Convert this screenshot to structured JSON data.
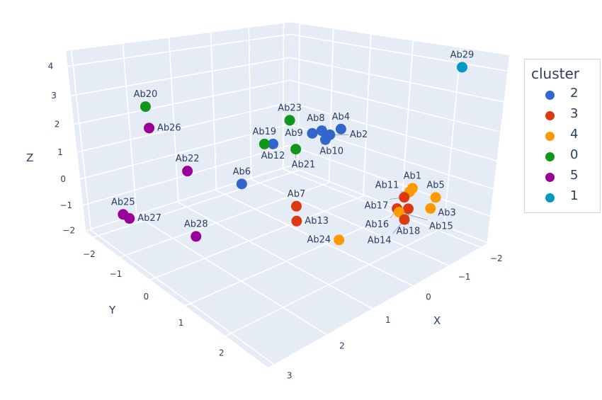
{
  "chart_data": {
    "type": "scatter3d",
    "title": "",
    "xlabel": "X",
    "ylabel": "Y",
    "zlabel": "Z",
    "xlim": [
      -2.2,
      3.1
    ],
    "ylim": [
      -2.3,
      2.9
    ],
    "zlim": [
      -2.05,
      4.5
    ],
    "x_ticks": [
      {
        "v": -2,
        "t": "−2"
      },
      {
        "v": -1,
        "t": "−1"
      },
      {
        "v": 0,
        "t": "0"
      },
      {
        "v": 1,
        "t": "1"
      },
      {
        "v": 2,
        "t": "2"
      },
      {
        "v": 3,
        "t": "3"
      }
    ],
    "y_ticks": [
      {
        "v": -2,
        "t": "−2"
      },
      {
        "v": -1,
        "t": "−1"
      },
      {
        "v": 0,
        "t": "0"
      },
      {
        "v": 1,
        "t": "1"
      },
      {
        "v": 2,
        "t": "2"
      }
    ],
    "z_ticks": [
      {
        "v": -2,
        "t": "−2"
      },
      {
        "v": -1,
        "t": "−1"
      },
      {
        "v": 0,
        "t": "0"
      },
      {
        "v": 1,
        "t": "1"
      },
      {
        "v": 2,
        "t": "2"
      },
      {
        "v": 3,
        "t": "3"
      },
      {
        "v": 4,
        "t": "4"
      }
    ],
    "grid": true,
    "legend": {
      "title": "cluster",
      "placement": "right",
      "entries": [
        {
          "name": "2",
          "color": "#3366CC"
        },
        {
          "name": "3",
          "color": "#DC3912"
        },
        {
          "name": "4",
          "color": "#FF9900"
        },
        {
          "name": "0",
          "color": "#109618"
        },
        {
          "name": "5",
          "color": "#990099"
        },
        {
          "name": "1",
          "color": "#0099C6"
        }
      ]
    },
    "points": [
      {
        "name": "Ab1",
        "cluster": "4",
        "x": -1.59,
        "y": 1.65,
        "z": -0.41
      },
      {
        "name": "Ab2",
        "cluster": "2",
        "x": -0.84,
        "y": 0.24,
        "z": 1.22
      },
      {
        "name": "Ab3",
        "cluster": "4",
        "x": -1.08,
        "y": 2.4,
        "z": -0.41
      },
      {
        "name": "Ab4",
        "cluster": "2",
        "x": -1.27,
        "y": 0.13,
        "z": 1.22
      },
      {
        "name": "Ab5",
        "cluster": "4",
        "x": -1.55,
        "y": 2.18,
        "z": -0.41
      },
      {
        "name": "Ab6",
        "cluster": "2",
        "x": 0.67,
        "y": -0.58,
        "z": -0.41
      },
      {
        "name": "Ab7",
        "cluster": "3",
        "x": 0.6,
        "y": 0.83,
        "z": -0.41
      },
      {
        "name": "Ab8",
        "cluster": "2",
        "x": -0.56,
        "y": 0.39,
        "z": 1.22
      },
      {
        "name": "Ab9",
        "cluster": "2",
        "x": -0.65,
        "y": -0.04,
        "z": 1.22
      },
      {
        "name": "Ab10",
        "cluster": "2",
        "x": -0.91,
        "y": -0.04,
        "z": 1.22
      },
      {
        "name": "Ab11",
        "cluster": "4",
        "x": -1.41,
        "y": 1.72,
        "z": -0.41
      },
      {
        "name": "Ab12",
        "cluster": "2",
        "x": 0.34,
        "y": -0.06,
        "z": 1.22
      },
      {
        "name": "Ab13",
        "cluster": "3",
        "x": 1.01,
        "y": 1.26,
        "z": -0.41
      },
      {
        "name": "Ab14",
        "cluster": "3",
        "x": -0.38,
        "y": 2.38,
        "z": -0.41
      },
      {
        "name": "Ab15",
        "cluster": "4",
        "x": -0.55,
        "y": 2.14,
        "z": -0.41
      },
      {
        "name": "Ab16",
        "cluster": "3",
        "x": -0.64,
        "y": 2.03,
        "z": -0.41
      },
      {
        "name": "Ab17",
        "cluster": "3",
        "x": -1.13,
        "y": 1.81,
        "z": -0.41
      },
      {
        "name": "Ab18",
        "cluster": "3",
        "x": -0.78,
        "y": 2.16,
        "z": -0.41
      },
      {
        "name": "Ab19",
        "cluster": "0",
        "x": 0.46,
        "y": -0.16,
        "z": 1.22
      },
      {
        "name": "Ab20",
        "cluster": "0",
        "x": 2.68,
        "y": -0.48,
        "z": 3.19
      },
      {
        "name": "Ab21",
        "cluster": "0",
        "x": 0.23,
        "y": 0.42,
        "z": 1.22
      },
      {
        "name": "Ab22",
        "cluster": "5",
        "x": 1.06,
        "y": -1.81,
        "z": -0.41
      },
      {
        "name": "Ab23",
        "cluster": "0",
        "x": -0.93,
        "y": -0.96,
        "z": 1.22
      },
      {
        "name": "Ab24",
        "cluster": "4",
        "x": 0.98,
        "y": 2.17,
        "z": -0.41
      },
      {
        "name": "Ab25",
        "cluster": "5",
        "x": 3.05,
        "y": -0.84,
        "z": -0.41
      },
      {
        "name": "Ab26",
        "cluster": "5",
        "x": 2.39,
        "y": -0.91,
        "z": 2.21
      },
      {
        "name": "Ab27",
        "cluster": "5",
        "x": 3.05,
        "y": -0.63,
        "z": -0.41
      },
      {
        "name": "Ab28",
        "cluster": "5",
        "x": 2.59,
        "y": 0.63,
        "z": -0.41
      },
      {
        "name": "Ab29",
        "cluster": "1",
        "x": -1.53,
        "y": 2.47,
        "z": 4.17
      }
    ]
  }
}
